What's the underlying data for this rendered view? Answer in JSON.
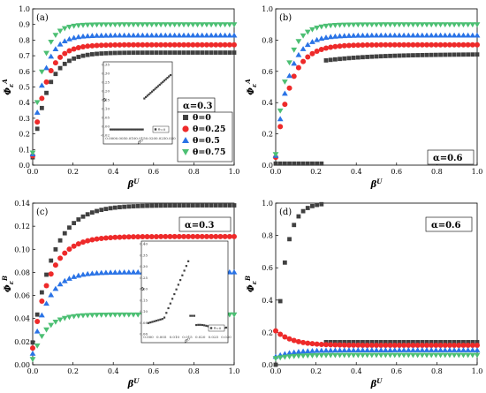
{
  "colors": {
    "theta0": "#404040",
    "theta025": "#ee2a2a",
    "theta05": "#2a73e6",
    "theta075": "#4cbf73"
  },
  "chart_data": [
    {
      "type": "scatter",
      "panel": "(a)",
      "annotation": "α=0.3",
      "xlabel": "β^U",
      "ylabel": "Φ_ε^A",
      "xlim": [
        0,
        1
      ],
      "ylim": [
        0,
        1
      ],
      "xticks": [
        "0.0",
        "0.2",
        "0.4",
        "0.6",
        "0.8",
        "1.0"
      ],
      "yticks": [
        "0.0",
        "0.1",
        "0.2",
        "0.3",
        "0.4",
        "0.5",
        "0.6",
        "0.7",
        "0.8",
        "0.9",
        "1.0"
      ],
      "legend": [
        "θ=0",
        "θ=0.25",
        "θ=0.5",
        "θ=0.75"
      ],
      "series": [
        {
          "name": "θ=0",
          "plateau": 0.72,
          "start": 0.05,
          "k": 14
        },
        {
          "name": "θ=0.25",
          "plateau": 0.77,
          "start": 0.06,
          "k": 16
        },
        {
          "name": "θ=0.5",
          "plateau": 0.83,
          "start": 0.07,
          "k": 19
        },
        {
          "name": "θ=0.75",
          "plateau": 0.9,
          "start": 0.08,
          "k": 22
        }
      ],
      "inset": {
        "xticks": [
          "0.000",
          "0.005",
          "0.010",
          "0.015",
          "0.020",
          "0.025",
          "0.030"
        ],
        "yticks": [
          "-0.02",
          "0.00",
          "0.05",
          "0.10",
          "0.15",
          "0.20",
          "0.25",
          "0.30",
          "0.35"
        ],
        "legend": "θ=0"
      }
    },
    {
      "type": "scatter",
      "panel": "(b)",
      "annotation": "α=0.6",
      "xlabel": "β^U",
      "ylabel": "Φ_ε^A",
      "xlim": [
        0,
        1
      ],
      "ylim": [
        0,
        1
      ],
      "xticks": [
        "0.0",
        "0.2",
        "0.4",
        "0.6",
        "0.8",
        "1.0"
      ],
      "yticks": [
        "0.0",
        "0.2",
        "0.4",
        "0.6",
        "0.8",
        "1.0"
      ],
      "series": [
        {
          "name": "θ=0",
          "low": 0.01,
          "jump_at": 0.25,
          "plateau": 0.71
        },
        {
          "name": "θ=0.25",
          "plateau": 0.77,
          "start": 0.05,
          "k": 14
        },
        {
          "name": "θ=0.5",
          "plateau": 0.83,
          "start": 0.06,
          "k": 16
        },
        {
          "name": "θ=0.75",
          "plateau": 0.9,
          "start": 0.07,
          "k": 18
        }
      ]
    },
    {
      "type": "scatter",
      "panel": "(c)",
      "annotation": "α=0.3",
      "xlabel": "β^U",
      "ylabel": "Φ_ε^B",
      "xlim": [
        0,
        1
      ],
      "ylim": [
        0,
        0.145
      ],
      "xticks": [
        "0.0",
        "0.2",
        "0.4",
        "0.6",
        "0.8",
        "1.0"
      ],
      "yticks": [
        "0.00",
        "0.02",
        "0.04",
        "0.06",
        "0.08",
        "0.10",
        "0.12",
        "0.14"
      ],
      "series": [
        {
          "name": "θ=0",
          "plateau": 0.143,
          "start": 0.02,
          "k": 10
        },
        {
          "name": "θ=0.25",
          "plateau": 0.115,
          "start": 0.015,
          "k": 12
        },
        {
          "name": "θ=0.5",
          "plateau": 0.083,
          "start": 0.01,
          "k": 14
        },
        {
          "name": "θ=0.75",
          "plateau": 0.045,
          "start": 0.005,
          "k": 16
        }
      ],
      "inset": {
        "xticks": [
          "0.000",
          "0.005",
          "0.010",
          "0.015",
          "0.020",
          "0.025",
          "0.030"
        ],
        "yticks": [
          "0.06",
          "0.08",
          "0.10",
          "0.15",
          "0.20",
          "0.25",
          "0.30",
          "0.35",
          "0.40"
        ],
        "legend": "θ=0"
      }
    },
    {
      "type": "scatter",
      "panel": "(d)",
      "annotation": "α=0.6",
      "xlabel": "β^U",
      "ylabel": "Φ_ε^B",
      "xlim": [
        0,
        1
      ],
      "ylim": [
        0,
        1
      ],
      "xticks": [
        "0.0",
        "0.2",
        "0.4",
        "0.6",
        "0.8",
        "1.0"
      ],
      "yticks": [
        "0.0",
        "0.2",
        "0.4",
        "0.6",
        "0.8",
        "1.0"
      ],
      "series": [
        {
          "name": "θ=0",
          "rise_to": 1.0,
          "jump_at": 0.25,
          "plateau": 0.14
        },
        {
          "name": "θ=0.25",
          "plateau": 0.12,
          "start": 0.21,
          "k": 12
        },
        {
          "name": "θ=0.5",
          "plateau": 0.09,
          "start": 0.05,
          "k": 12
        },
        {
          "name": "θ=0.75",
          "plateau": 0.06,
          "start": 0.04,
          "k": 12
        }
      ]
    }
  ]
}
